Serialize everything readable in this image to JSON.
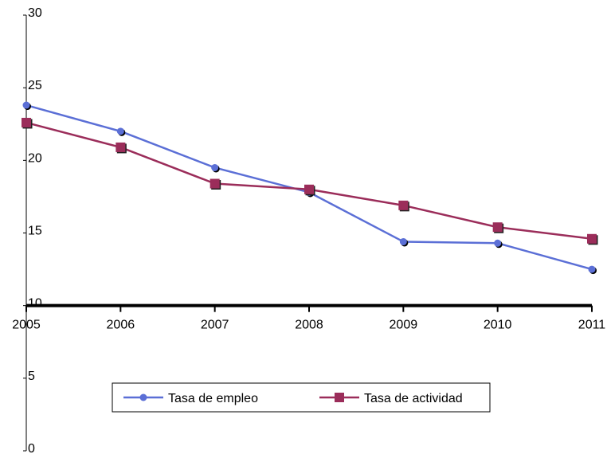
{
  "chart_data": {
    "type": "line",
    "title": "",
    "xlabel": "",
    "ylabel": "",
    "x": [
      "2005",
      "2006",
      "2007",
      "2008",
      "2009",
      "2010",
      "2011"
    ],
    "ylim": [
      0,
      30
    ],
    "yticks": [
      "0",
      "5",
      "10",
      "15",
      "20",
      "25",
      "30"
    ],
    "x_axis_crosses_at": 10,
    "grid": false,
    "legend_position": "lower-center",
    "series": [
      {
        "name": "Tasa de empleo",
        "values": [
          23.8,
          22.0,
          19.5,
          17.8,
          14.4,
          14.3,
          12.5
        ],
        "color": "#5b6fd6",
        "marker": "circle"
      },
      {
        "name": "Tasa de actividad",
        "values": [
          22.6,
          20.9,
          18.4,
          18.0,
          16.9,
          15.4,
          14.6
        ],
        "color": "#9b2d5a",
        "marker": "square"
      }
    ]
  }
}
